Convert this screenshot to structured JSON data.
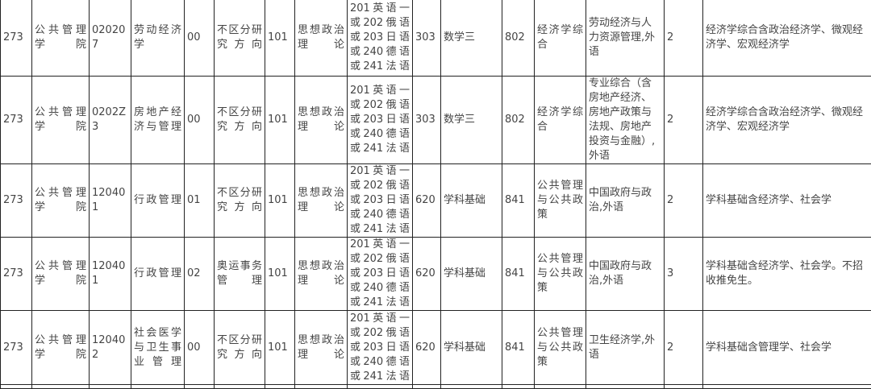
{
  "rows": [
    {
      "code": "273",
      "school": "公共管理学院",
      "major_code": "020207",
      "major": "劳动经济学",
      "dir_code": "00",
      "direction": "不区分研究方向",
      "politics_code": "101",
      "politics": "思想政治理论",
      "language": "201英语一或202俄语或203日语或240德语或241法语",
      "subject1_code": "303",
      "subject1": "数学三",
      "subject2_code": "802",
      "subject2": "经济学综合",
      "retest": "劳动经济与人力资源管理,外语",
      "enroll": "2",
      "notes": "经济学综合含政治经济学、微观经济学、宏观经济学"
    },
    {
      "code": "273",
      "school": "公共管理学院",
      "major_code": "0202Z3",
      "major": "房地产经济与管理",
      "dir_code": "00",
      "direction": "不区分研究方向",
      "politics_code": "101",
      "politics": "思想政治理论",
      "language": "201英语一或202俄语或203日语或240德语或241法语",
      "subject1_code": "303",
      "subject1": "数学三",
      "subject2_code": "802",
      "subject2": "经济学综合",
      "retest": "专业综合（含房地产经济、房地产政策与法规、房地产投资与金融）,外语",
      "enroll": "2",
      "notes": "经济学综合含政治经济学、微观经济学、宏观经济学"
    },
    {
      "code": "273",
      "school": "公共管理学院",
      "major_code": "120401",
      "major": "行政管理",
      "dir_code": "01",
      "direction": "不区分研究方向",
      "politics_code": "101",
      "politics": "思想政治理论",
      "language": "201英语一或202俄语或203日语或240德语或241法语",
      "subject1_code": "620",
      "subject1": "学科基础",
      "subject2_code": "841",
      "subject2": "公共管理与公共政策",
      "retest": "中国政府与政治,外语",
      "enroll": "2",
      "notes": "学科基础含经济学、社会学"
    },
    {
      "code": "273",
      "school": "公共管理学院",
      "major_code": "120401",
      "major": "行政管理",
      "dir_code": "02",
      "direction": "奥运事务管理",
      "politics_code": "101",
      "politics": "思想政治理论",
      "language": "201英语一或202俄语或203日语或240德语或241法语",
      "subject1_code": "620",
      "subject1": "学科基础",
      "subject2_code": "841",
      "subject2": "公共管理与公共政策",
      "retest": "中国政府与政治,外语",
      "enroll": "3",
      "notes": "学科基础含经济学、社会学。不招收推免生。"
    },
    {
      "code": "273",
      "school": "公共管理学院",
      "major_code": "120402",
      "major": "社会医学与卫生事业管理",
      "dir_code": "00",
      "direction": "不区分研究方向",
      "politics_code": "101",
      "politics": "思想政治理论",
      "language": "201英语一或202俄语或203日语或240德语或241法语",
      "subject1_code": "620",
      "subject1": "学科基础",
      "subject2_code": "841",
      "subject2": "公共管理与公共政策",
      "retest": "卫生经济学,外语",
      "enroll": "2",
      "notes": "学科基础含管理学、社会学"
    }
  ]
}
